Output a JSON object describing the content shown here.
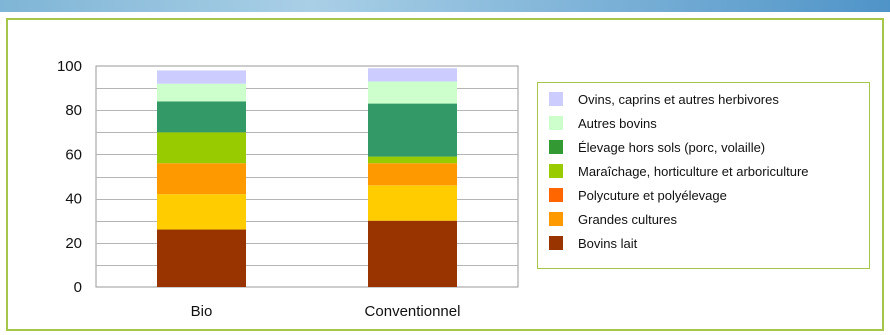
{
  "chart_data": {
    "type": "bar",
    "stacked": true,
    "categories": [
      "Bio",
      "Conventionnel"
    ],
    "ylim": [
      0,
      100
    ],
    "yticks": [
      0,
      20,
      40,
      60,
      80,
      100
    ],
    "grid": true,
    "legend_position": "right",
    "series": [
      {
        "name": "Bovins lait",
        "color": "#993300",
        "values": [
          26,
          30
        ]
      },
      {
        "name": "Grandes cultures",
        "color": "#ffcc00",
        "values": [
          16,
          16
        ]
      },
      {
        "name": "Polycuture et polyélevage",
        "color": "#ff9900",
        "values": [
          14,
          10
        ]
      },
      {
        "name": "Maraîchage, horticulture et arboriculture",
        "color": "#99cc00",
        "values": [
          14,
          3
        ]
      },
      {
        "name": "Élevage hors sols (porc, volaille)",
        "color": "#339966",
        "values": [
          0,
          0
        ]
      },
      {
        "name": "Autres bovins",
        "color": "#339966",
        "values": [
          14,
          24
        ]
      },
      {
        "name": "Ovins, caprins et autres herbivores",
        "color": "#ccffcc",
        "values": [
          8,
          10
        ]
      },
      {
        "name": "",
        "color": "#ccccff",
        "values": [
          6,
          6
        ]
      }
    ]
  },
  "legend": {
    "items": [
      {
        "label": "Ovins, caprins et autres herbivores",
        "color": "#ccccff"
      },
      {
        "label": "Autres bovins",
        "color": "#ccffcc"
      },
      {
        "label": "Élevage hors sols (porc, volaille)",
        "color": "#339933"
      },
      {
        "label": "Maraîchage, horticulture et arboriculture",
        "color": "#99cc00"
      },
      {
        "label": "Polycuture et polyélevage",
        "color": "#ff6600"
      },
      {
        "label": "Grandes cultures",
        "color": "#ff9900"
      },
      {
        "label": "Bovins lait",
        "color": "#993300"
      }
    ]
  }
}
